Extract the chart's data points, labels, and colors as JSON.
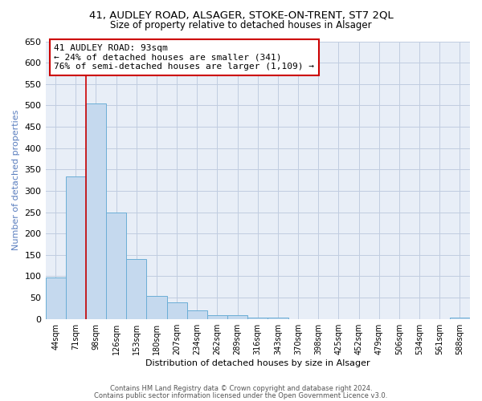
{
  "title1": "41, AUDLEY ROAD, ALSAGER, STOKE-ON-TRENT, ST7 2QL",
  "title2": "Size of property relative to detached houses in Alsager",
  "xlabel": "Distribution of detached houses by size in Alsager",
  "ylabel": "Number of detached properties",
  "bar_labels": [
    "44sqm",
    "71sqm",
    "98sqm",
    "126sqm",
    "153sqm",
    "180sqm",
    "207sqm",
    "234sqm",
    "262sqm",
    "289sqm",
    "316sqm",
    "343sqm",
    "370sqm",
    "398sqm",
    "425sqm",
    "452sqm",
    "479sqm",
    "506sqm",
    "534sqm",
    "561sqm",
    "588sqm"
  ],
  "bar_values": [
    97,
    333,
    505,
    250,
    140,
    53,
    38,
    21,
    8,
    8,
    3,
    3,
    0,
    0,
    0,
    0,
    0,
    0,
    0,
    0,
    3
  ],
  "bar_color": "#c5d9ee",
  "bar_edge_color": "#6baed6",
  "ylim": [
    0,
    650
  ],
  "yticks": [
    0,
    50,
    100,
    150,
    200,
    250,
    300,
    350,
    400,
    450,
    500,
    550,
    600,
    650
  ],
  "vline_color": "#cc0000",
  "annotation_title": "41 AUDLEY ROAD: 93sqm",
  "annotation_line1": "← 24% of detached houses are smaller (341)",
  "annotation_line2": "76% of semi-detached houses are larger (1,109) →",
  "annotation_box_color": "#ffffff",
  "annotation_box_edge": "#cc0000",
  "footer1": "Contains HM Land Registry data © Crown copyright and database right 2024.",
  "footer2": "Contains public sector information licensed under the Open Government Licence v3.0.",
  "bg_color": "#ffffff",
  "plot_bg_color": "#e8eef7",
  "grid_color": "#c0cce0"
}
